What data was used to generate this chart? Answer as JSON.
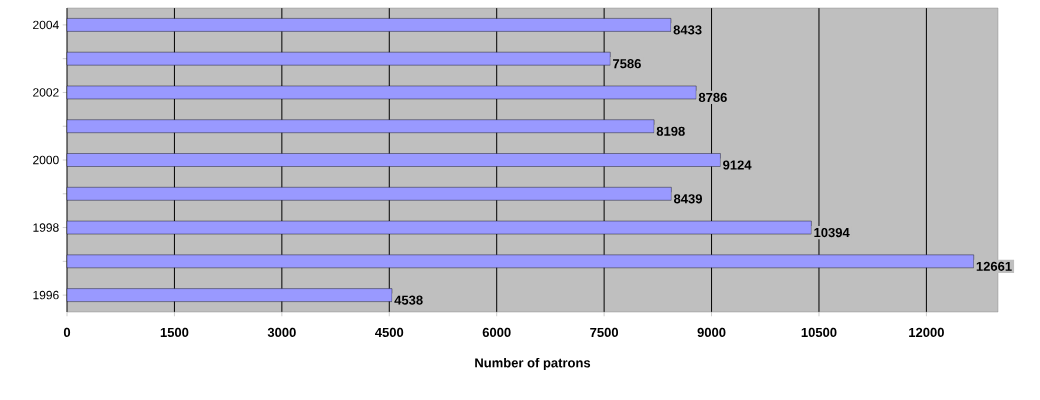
{
  "chart_data": {
    "type": "bar",
    "orientation": "horizontal",
    "xlabel": "Number of patrons",
    "categories": [
      "2004",
      null,
      "2002",
      null,
      "2000",
      null,
      "1998",
      null,
      "1996"
    ],
    "values": [
      8433,
      7586,
      8786,
      8198,
      9124,
      8439,
      10394,
      12661,
      4538
    ],
    "color": "#9999ff",
    "data_labels": true,
    "grid": "x",
    "xlim": [
      0,
      13000
    ],
    "xticks": [
      0,
      1500,
      3000,
      4500,
      6000,
      7500,
      9000,
      10500,
      12000
    ]
  }
}
